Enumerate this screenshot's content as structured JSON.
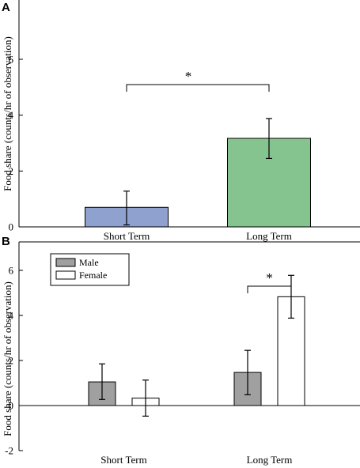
{
  "chart_data": [
    {
      "type": "bar",
      "panel": "A",
      "title": "",
      "ylabel": "Food share (counts/hr of observation)",
      "xlabel": "",
      "categories": [
        "Short Term",
        "Long Term"
      ],
      "values": [
        0.7,
        3.17
      ],
      "errors": [
        [
          0.07,
          1.28
        ],
        [
          2.45,
          3.88
        ]
      ],
      "colors": [
        "#8ea1cf",
        "#86c48f"
      ],
      "ylim": [
        0,
        8
      ],
      "yticks": [
        "0",
        "2",
        "4",
        "6"
      ],
      "significance": [
        {
          "between": [
            "Short Term",
            "Long Term"
          ],
          "label": "*"
        }
      ],
      "grid": false
    },
    {
      "type": "bar",
      "panel": "B",
      "title": "",
      "ylabel": "Food share (counts/hr of observation)",
      "xlabel": "",
      "categories": [
        "Short Term",
        "Long Term"
      ],
      "series": [
        {
          "name": "Male",
          "color": "#a0a0a0",
          "values": [
            1.05,
            1.47
          ],
          "errors": [
            [
              0.27,
              1.85
            ],
            [
              0.48,
              2.45
            ]
          ]
        },
        {
          "name": "Female",
          "color": "#ffffff",
          "values": [
            0.33,
            4.83
          ],
          "errors": [
            [
              -0.47,
              1.13
            ],
            [
              3.88,
              5.78
            ]
          ]
        }
      ],
      "ylim": [
        -2,
        7
      ],
      "yticks": [
        "-2",
        "0",
        "2",
        "4",
        "6"
      ],
      "significance": [
        {
          "category": "Long Term",
          "between": [
            "Male",
            "Female"
          ],
          "label": "*"
        }
      ],
      "legend_position": "top-left",
      "grid": false
    }
  ]
}
